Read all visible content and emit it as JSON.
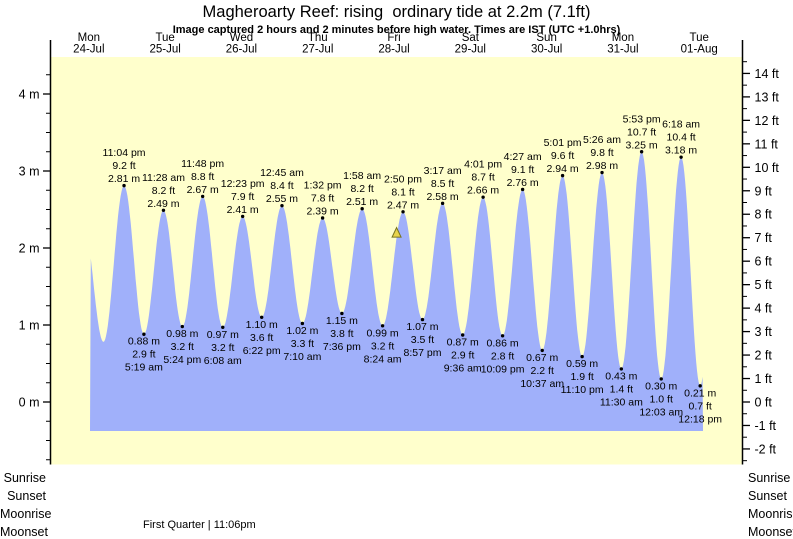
{
  "chart_data": {
    "type": "area",
    "title": "Magheroarty Reef: rising  ordinary tide at 2.2m (7.1ft)",
    "subtitle": "Image captured 2 hours and 2 minutes before high water. Times are IST (UTC +1.0hrs)",
    "grid": false,
    "x_axis": {
      "unit": "days",
      "labels": [
        {
          "day": "Mon",
          "date": "24-Jul"
        },
        {
          "day": "Tue",
          "date": "25-Jul"
        },
        {
          "day": "Wed",
          "date": "26-Jul"
        },
        {
          "day": "Thu",
          "date": "27-Jul"
        },
        {
          "day": "Fri",
          "date": "28-Jul"
        },
        {
          "day": "Sat",
          "date": "29-Jul"
        },
        {
          "day": "Sun",
          "date": "30-Jul"
        },
        {
          "day": "Mon",
          "date": "31-Jul"
        },
        {
          "day": "Tue",
          "date": "01-Aug"
        }
      ]
    },
    "y_axis_left": {
      "unit": "m",
      "range_m": [
        -0.82,
        4.48
      ],
      "labels": [
        {
          "v": 4,
          "text": "4 m"
        },
        {
          "v": 3,
          "text": "3 m"
        },
        {
          "v": 2,
          "text": "2 m"
        },
        {
          "v": 1,
          "text": "1 m"
        },
        {
          "v": 0,
          "text": "0 m"
        }
      ]
    },
    "y_axis_right": {
      "unit": "ft",
      "labels": [
        {
          "v": 14,
          "text": "14 ft"
        },
        {
          "v": 13,
          "text": "13 ft"
        },
        {
          "v": 12,
          "text": "12 ft"
        },
        {
          "v": 11,
          "text": "11 ft"
        },
        {
          "v": 10,
          "text": "10 ft"
        },
        {
          "v": 9,
          "text": "9 ft"
        },
        {
          "v": 8,
          "text": "8 ft"
        },
        {
          "v": 7,
          "text": "7 ft"
        },
        {
          "v": 6,
          "text": "6 ft"
        },
        {
          "v": 5,
          "text": "5 ft"
        },
        {
          "v": 4,
          "text": "4 ft"
        },
        {
          "v": 3,
          "text": "3 ft"
        },
        {
          "v": 2,
          "text": "2 ft"
        },
        {
          "v": 1,
          "text": "1 ft"
        },
        {
          "v": 0,
          "text": "0 ft"
        },
        {
          "v": -1,
          "text": "-1 ft"
        },
        {
          "v": -2,
          "text": "-2 ft"
        }
      ]
    },
    "tide_events": [
      {
        "kind": "high",
        "time": "11:04 pm",
        "ft": "9.2 ft",
        "m": "2.81 m",
        "t_hours": 23.07,
        "height_m": 2.81
      },
      {
        "kind": "low",
        "time": "5:19 am",
        "ft": "2.9 ft",
        "m": "0.88 m",
        "t_hours": 29.32,
        "height_m": 0.88
      },
      {
        "kind": "high",
        "time": "11:28 am",
        "ft": "8.2 ft",
        "m": "2.49 m",
        "t_hours": 35.47,
        "height_m": 2.49
      },
      {
        "kind": "low",
        "time": "5:24 pm",
        "ft": "3.2 ft",
        "m": "0.98 m",
        "t_hours": 41.4,
        "height_m": 0.98
      },
      {
        "kind": "high",
        "time": "11:48 pm",
        "ft": "8.8 ft",
        "m": "2.67 m",
        "t_hours": 47.8,
        "height_m": 2.67
      },
      {
        "kind": "low",
        "time": "6:08 am",
        "ft": "3.2 ft",
        "m": "0.97 m",
        "t_hours": 54.13,
        "height_m": 0.97
      },
      {
        "kind": "high",
        "time": "12:23 pm",
        "ft": "7.9 ft",
        "m": "2.41 m",
        "t_hours": 60.38,
        "height_m": 2.41
      },
      {
        "kind": "low",
        "time": "6:22 pm",
        "ft": "3.6 ft",
        "m": "1.10 m",
        "t_hours": 66.37,
        "height_m": 1.1
      },
      {
        "kind": "high",
        "time": "12:45 am",
        "ft": "8.4 ft",
        "m": "2.55 m",
        "t_hours": 72.75,
        "height_m": 2.55
      },
      {
        "kind": "low",
        "time": "7:10 am",
        "ft": "3.3 ft",
        "m": "1.02 m",
        "t_hours": 79.17,
        "height_m": 1.02
      },
      {
        "kind": "high",
        "time": "1:32 pm",
        "ft": "7.8 ft",
        "m": "2.39 m",
        "t_hours": 85.53,
        "height_m": 2.39
      },
      {
        "kind": "low",
        "time": "7:36 pm",
        "ft": "3.8 ft",
        "m": "1.15 m",
        "t_hours": 91.6,
        "height_m": 1.15
      },
      {
        "kind": "high",
        "time": "1:58 am",
        "ft": "8.2 ft",
        "m": "2.51 m",
        "t_hours": 97.97,
        "height_m": 2.51
      },
      {
        "kind": "low",
        "time": "8:24 am",
        "ft": "3.2 ft",
        "m": "0.99 m",
        "t_hours": 104.4,
        "height_m": 0.99
      },
      {
        "kind": "high",
        "time": "2:50 pm",
        "ft": "8.1 ft",
        "m": "2.47 m",
        "t_hours": 110.83,
        "height_m": 2.47
      },
      {
        "kind": "low",
        "time": "8:57 pm",
        "ft": "3.5 ft",
        "m": "1.07 m",
        "t_hours": 116.95,
        "height_m": 1.07
      },
      {
        "kind": "high",
        "time": "3:17 am",
        "ft": "8.5 ft",
        "m": "2.58 m",
        "t_hours": 123.28,
        "height_m": 2.58
      },
      {
        "kind": "low",
        "time": "9:36 am",
        "ft": "2.9 ft",
        "m": "0.87 m",
        "t_hours": 129.6,
        "height_m": 0.87
      },
      {
        "kind": "high",
        "time": "4:01 pm",
        "ft": "8.7 ft",
        "m": "2.66 m",
        "t_hours": 136.02,
        "height_m": 2.66
      },
      {
        "kind": "low",
        "time": "10:09 pm",
        "ft": "2.8 ft",
        "m": "0.86 m",
        "t_hours": 142.15,
        "height_m": 0.86
      },
      {
        "kind": "high",
        "time": "4:27 am",
        "ft": "9.1 ft",
        "m": "2.76 m",
        "t_hours": 148.45,
        "height_m": 2.76
      },
      {
        "kind": "low",
        "time": "10:37 am",
        "ft": "2.2 ft",
        "m": "0.67 m",
        "t_hours": 154.62,
        "height_m": 0.67
      },
      {
        "kind": "high",
        "time": "5:01 pm",
        "ft": "9.6 ft",
        "m": "2.94 m",
        "t_hours": 161.02,
        "height_m": 2.94
      },
      {
        "kind": "low",
        "time": "11:10 pm",
        "ft": "1.9 ft",
        "m": "0.59 m",
        "t_hours": 167.17,
        "height_m": 0.59
      },
      {
        "kind": "high",
        "time": "5:26 am",
        "ft": "9.8 ft",
        "m": "2.98 m",
        "t_hours": 173.43,
        "height_m": 2.98
      },
      {
        "kind": "low",
        "time": "11:30 am",
        "ft": "1.4 ft",
        "m": "0.43 m",
        "t_hours": 179.5,
        "height_m": 0.43
      },
      {
        "kind": "high",
        "time": "5:53 pm",
        "ft": "10.7 ft",
        "m": "3.25 m",
        "t_hours": 185.88,
        "height_m": 3.25
      },
      {
        "kind": "low",
        "time": "12:03 am",
        "ft": "1.0 ft",
        "m": "0.30 m",
        "t_hours": 192.05,
        "height_m": 0.3
      },
      {
        "kind": "high",
        "time": "6:18 am",
        "ft": "10.4 ft",
        "m": "3.18 m",
        "t_hours": 198.3,
        "height_m": 3.18
      },
      {
        "kind": "low",
        "time": "12:18 pm",
        "ft": "0.7 ft",
        "m": "0.21 m",
        "t_hours": 204.3,
        "height_m": 0.21
      }
    ],
    "current_marker": {
      "t_hours": 108.8,
      "height_m": 2.2
    },
    "colors": {
      "plot_bg": "#ffffcc",
      "tide_fill": "#a0b0fa",
      "day_label": "#e83030",
      "axis": "#000000",
      "marker_fill": "#e8d44c",
      "marker_stroke": "#77731f"
    }
  },
  "footer": {
    "sun_moon_labels": [
      "Sunrise",
      "Sunset",
      "Moonrise",
      "Moonset"
    ],
    "moon_phase": "First Quarter | 11:06pm"
  }
}
